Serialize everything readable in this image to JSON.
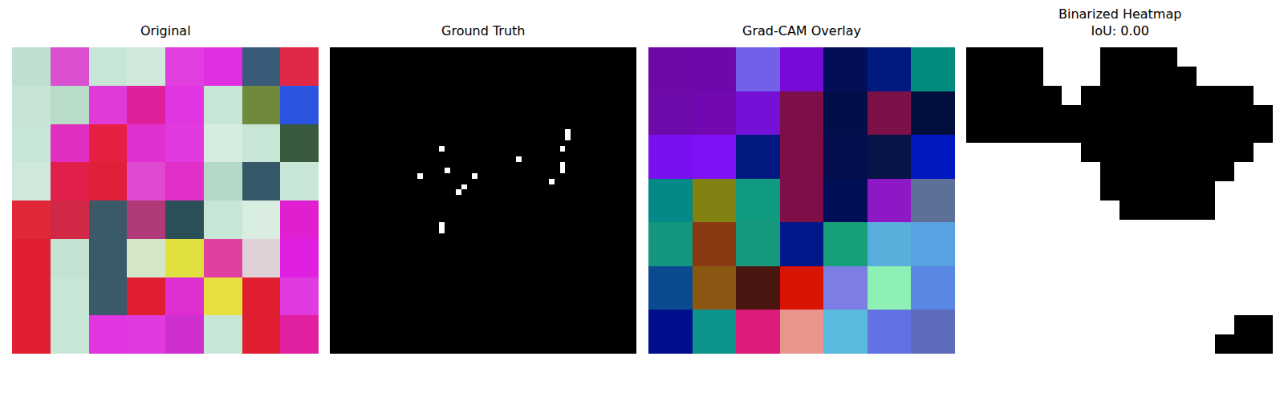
{
  "chart_data": [
    {
      "type": "image",
      "title": "Original",
      "tick_labels": false,
      "colors": [
        [
          "#bfe0cf",
          "#d94fd0",
          "#c8e6d6",
          "#cfe8da",
          "#e23fe0",
          "#e02fe0",
          "#3a5a7a",
          "#e02848"
        ],
        [
          "#c7e4d4",
          "#b9dcc9",
          "#e03ad8",
          "#e0209a",
          "#e035e0",
          "#c8e6d6",
          "#6e8a3a",
          "#2b55e0"
        ],
        [
          "#c8e6d6",
          "#e02fc0",
          "#e52040",
          "#e030d0",
          "#e03ae0",
          "#d6ecdf",
          "#c8e6d6",
          "#3a5a40"
        ],
        [
          "#d0e8dc",
          "#e0204a",
          "#e02038",
          "#e04ad0",
          "#e030c8",
          "#b4d8c8",
          "#36596a",
          "#c8e6d6"
        ],
        [
          "#e02838",
          "#d02846",
          "#3a5a6a",
          "#b03a78",
          "#2c5058",
          "#c8e6d6",
          "#d8ecdf",
          "#e020d0"
        ],
        [
          "#e02030",
          "#c4e2d2",
          "#3a5a6a",
          "#d4e6c8",
          "#e0e040",
          "#e040a0",
          "#e0d0d8",
          "#e020e0"
        ],
        [
          "#e02030",
          "#c8e6d6",
          "#3a5a6a",
          "#e02030",
          "#e02fd0",
          "#e8e040",
          "#e02030",
          "#e03ae0"
        ],
        [
          "#e02030",
          "#c8e6d6",
          "#e035e0",
          "#e03ae0",
          "#d02fd0",
          "#c8e6d6",
          "#e02030",
          "#e020a0"
        ]
      ]
    },
    {
      "type": "mask",
      "title": "Ground Truth",
      "tick_labels": false,
      "size": 56,
      "spots": [
        [
          18,
          20
        ],
        [
          22,
          21
        ],
        [
          23,
          16
        ],
        [
          25,
          24
        ],
        [
          26,
          23
        ],
        [
          23,
          26
        ],
        [
          20,
          34
        ],
        [
          24,
          40
        ],
        [
          22,
          42
        ],
        [
          21,
          42
        ],
        [
          18,
          42
        ],
        [
          15,
          43
        ],
        [
          16,
          43
        ],
        [
          32,
          20
        ],
        [
          33,
          20
        ]
      ]
    },
    {
      "type": "image",
      "title": "Grad-CAM Overlay",
      "tick_labels": false,
      "colors": [
        [
          "#6e09a8",
          "#6e08aa",
          "#7260e8",
          "#770ad8",
          "#040e58",
          "#001a80",
          "#008c7e"
        ],
        [
          "#6e0aaa",
          "#7408b0",
          "#7510d6",
          "#7e0e48",
          "#020e4a",
          "#7c1048",
          "#020e3e"
        ],
        [
          "#7a10f0",
          "#7e12f4",
          "#001a82",
          "#7e0e48",
          "#040e4e",
          "#061448",
          "#0018c0"
        ],
        [
          "#058888",
          "#828212",
          "#109a80",
          "#7e0e48",
          "#000e58",
          "#8e18c6",
          "#5c7098"
        ],
        [
          "#14967e",
          "#883a12",
          "#15987c",
          "#00188a",
          "#17a07a",
          "#5aaedc",
          "#58a2e2"
        ],
        [
          "#0a4a8e",
          "#8a5612",
          "#4a1612",
          "#da1402",
          "#7c7ee4",
          "#8ef0b4",
          "#5a86e4"
        ],
        [
          "#010e8c",
          "#0c948c",
          "#dc1c78",
          "#e8968c",
          "#5abade",
          "#6272e2",
          "#5e6aba"
        ]
      ]
    },
    {
      "type": "binary",
      "title": "Binarized Heatmap\nIoU: 0.00",
      "tick_labels": false,
      "cells": [
        [
          0,
          0,
          0,
          0,
          1,
          1,
          1,
          0,
          0,
          0,
          0,
          1,
          1,
          1,
          1,
          1
        ],
        [
          0,
          0,
          0,
          0,
          1,
          1,
          1,
          0,
          0,
          0,
          0,
          0,
          1,
          1,
          1,
          1
        ],
        [
          0,
          0,
          0,
          0,
          0,
          1,
          0,
          0,
          0,
          0,
          0,
          0,
          0,
          0,
          0,
          1
        ],
        [
          0,
          0,
          0,
          0,
          0,
          0,
          0,
          0,
          0,
          0,
          0,
          0,
          0,
          0,
          0,
          0
        ],
        [
          0,
          0,
          0,
          0,
          0,
          0,
          0,
          0,
          0,
          0,
          0,
          0,
          0,
          0,
          0,
          0
        ],
        [
          1,
          1,
          1,
          1,
          1,
          1,
          0,
          0,
          0,
          0,
          0,
          0,
          0,
          0,
          0,
          1
        ],
        [
          1,
          1,
          1,
          1,
          1,
          1,
          1,
          0,
          0,
          0,
          0,
          0,
          0,
          0,
          1,
          1
        ],
        [
          1,
          1,
          1,
          1,
          1,
          1,
          1,
          0,
          0,
          0,
          0,
          0,
          0,
          1,
          1,
          1
        ],
        [
          1,
          1,
          1,
          1,
          1,
          1,
          1,
          1,
          0,
          0,
          0,
          0,
          0,
          1,
          1,
          1
        ],
        [
          1,
          1,
          1,
          1,
          1,
          1,
          1,
          1,
          1,
          1,
          1,
          1,
          1,
          1,
          1,
          1
        ],
        [
          1,
          1,
          1,
          1,
          1,
          1,
          1,
          1,
          1,
          1,
          1,
          1,
          1,
          1,
          1,
          1
        ],
        [
          1,
          1,
          1,
          1,
          1,
          1,
          1,
          1,
          1,
          1,
          1,
          1,
          1,
          1,
          1,
          1
        ],
        [
          1,
          1,
          1,
          1,
          1,
          1,
          1,
          1,
          1,
          1,
          1,
          1,
          1,
          1,
          1,
          1
        ],
        [
          1,
          1,
          1,
          1,
          1,
          1,
          1,
          1,
          1,
          1,
          1,
          1,
          1,
          1,
          1,
          1
        ],
        [
          1,
          1,
          1,
          1,
          1,
          1,
          1,
          1,
          1,
          1,
          1,
          1,
          1,
          1,
          0,
          0
        ],
        [
          1,
          1,
          1,
          1,
          1,
          1,
          1,
          1,
          1,
          1,
          1,
          1,
          1,
          0,
          0,
          0
        ]
      ]
    }
  ]
}
